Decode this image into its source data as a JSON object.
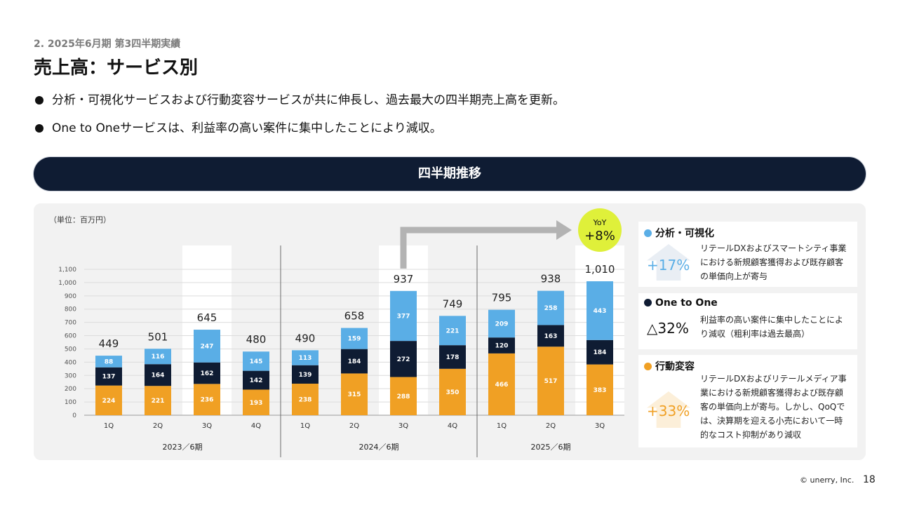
{
  "header": {
    "subtitle": "2. 2025年6月期 第3四半期実績",
    "title": "売上高：サービス別"
  },
  "bullets": [
    "分析・可視化サービスおよび行動変容サービスが共に伸長し、過去最大の四半期売上高を更新。",
    "One to Oneサービスは、利益率の高い案件に集中したことにより減収。"
  ],
  "banner": {
    "label": "四半期推移"
  },
  "chart_data": {
    "type": "bar",
    "stacked": true,
    "unit_label": "（単位：百万円）",
    "categories": [
      "1Q",
      "2Q",
      "3Q",
      "4Q",
      "1Q",
      "2Q",
      "3Q",
      "4Q",
      "1Q",
      "2Q",
      "3Q"
    ],
    "groups": [
      {
        "label": "2023／6期",
        "start": 0,
        "count": 4
      },
      {
        "label": "2024／6期",
        "start": 4,
        "count": 4
      },
      {
        "label": "2025／6期",
        "start": 8,
        "count": 3
      }
    ],
    "highlighted": [
      2,
      6,
      10
    ],
    "series": [
      {
        "name": "行動変容",
        "color": "#f0a024",
        "values": [
          224,
          221,
          236,
          193,
          238,
          315,
          288,
          350,
          466,
          517,
          383
        ]
      },
      {
        "name": "One to One",
        "color": "#0f1c33",
        "values": [
          137,
          164,
          162,
          142,
          139,
          184,
          272,
          178,
          120,
          163,
          184
        ]
      },
      {
        "name": "分析・可視化",
        "color": "#5aaee6",
        "values": [
          88,
          116,
          247,
          145,
          113,
          159,
          377,
          221,
          209,
          258,
          443
        ]
      }
    ],
    "totals": [
      449,
      501,
      645,
      480,
      490,
      658,
      937,
      749,
      795,
      938,
      1010
    ],
    "total_labels": [
      "449",
      "501",
      "645",
      "480",
      "490",
      "658",
      "937",
      "749",
      "795",
      "938",
      "1,010"
    ],
    "yticks": [
      0,
      100,
      200,
      300,
      400,
      500,
      600,
      700,
      800,
      900,
      1000,
      1100
    ],
    "ytick_labels": [
      "0",
      "100",
      "200",
      "300",
      "400",
      "500",
      "600",
      "700",
      "800",
      "900",
      "1,000",
      "1,100"
    ],
    "ylim": [
      0,
      1100
    ],
    "grid": true,
    "yoy_callout": {
      "from_index": 6,
      "to_index": 10,
      "label_top": "YoY",
      "label_value": "+8%",
      "color": "#dff03a"
    }
  },
  "cards": [
    {
      "name": "分析・可視化",
      "color": "#5aaee6",
      "pct": "+17%",
      "pct_color": "#5aaee6",
      "lines": [
        "リテールDXおよびスマートシティ事業",
        "における新規顧客獲得および既存顧客",
        "の単価向上が寄与"
      ]
    },
    {
      "name": "One to One",
      "color": "#0f1c33",
      "pct": "△32%",
      "pct_color": "#111111",
      "lines": [
        "利益率の高い案件に集中したことによ",
        "り減収（粗利率は過去最高）"
      ]
    },
    {
      "name": "行動変容",
      "color": "#f0a024",
      "pct": "+33%",
      "pct_color": "#f0a024",
      "lines": [
        "リテールDXおよびリテールメディア事",
        "業における新規顧客獲得および既存顧",
        "客の単価向上が寄与。しかし、QoQで",
        "は、決算期を迎える小売において一時",
        "的なコスト抑制があり減収"
      ]
    }
  ],
  "footer": {
    "copyright": "© unerry, Inc.",
    "page": "18"
  }
}
